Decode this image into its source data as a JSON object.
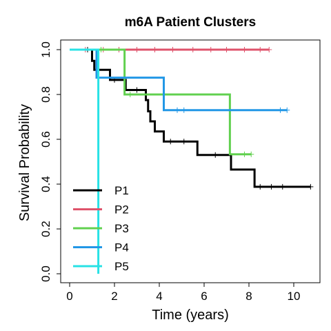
{
  "chart_data": {
    "type": "line",
    "title": "m6A Patient Clusters",
    "xlabel": "Time (years)",
    "ylabel": "Survival Probability",
    "xlim": [
      0,
      11
    ],
    "ylim": [
      0,
      1
    ],
    "x_ticks": [
      0,
      2,
      4,
      6,
      8,
      10
    ],
    "y_ticks": [
      0.0,
      0.2,
      0.4,
      0.6,
      0.8,
      1.0
    ],
    "x_tick_labels": [
      "0",
      "2",
      "4",
      "6",
      "8",
      "10"
    ],
    "y_tick_labels": [
      "0.0",
      "0.2",
      "0.4",
      "0.6",
      "0.8",
      "1.0"
    ],
    "grid": false,
    "legend_position": "bottom-left",
    "series": [
      {
        "name": "P1",
        "color": "#000000",
        "x": [
          0,
          0.95,
          1.0,
          1.1,
          1.8,
          2.5,
          3.4,
          3.5,
          3.6,
          3.8,
          4.2,
          5.7,
          7.2,
          8.25,
          10.75
        ],
        "y": [
          1.0,
          1.0,
          0.95,
          0.91,
          0.865,
          0.82,
          0.775,
          0.725,
          0.68,
          0.635,
          0.59,
          0.53,
          0.465,
          0.388,
          0.388
        ],
        "censor_x": [
          0.8,
          2.0,
          3.0,
          4.5,
          5.1,
          6.5,
          8.5,
          9.0,
          9.5,
          10.75
        ],
        "censor_y": [
          1.0,
          0.865,
          0.82,
          0.59,
          0.59,
          0.53,
          0.388,
          0.388,
          0.388,
          0.388
        ]
      },
      {
        "name": "P2",
        "color": "#DF536B",
        "x": [
          0,
          8.9
        ],
        "y": [
          1.0,
          1.0
        ],
        "censor_x": [
          0.7,
          1.5,
          2.2,
          3.0,
          3.8,
          4.6,
          5.5,
          6.3,
          7.0,
          7.8,
          8.5,
          8.9
        ],
        "censor_y": [
          1.0,
          1.0,
          1.0,
          1.0,
          1.0,
          1.0,
          1.0,
          1.0,
          1.0,
          1.0,
          1.0,
          1.0
        ]
      },
      {
        "name": "P3",
        "color": "#61D04F",
        "x": [
          0,
          2.45,
          7.15,
          8.1
        ],
        "y": [
          1.0,
          0.8,
          0.533,
          0.533
        ],
        "censor_x": [
          1.4,
          2.7,
          7.8,
          8.1
        ],
        "censor_y": [
          1.0,
          0.8,
          0.533,
          0.533
        ]
      },
      {
        "name": "P4",
        "color": "#2297E6",
        "x": [
          0,
          1.2,
          4.2,
          9.7
        ],
        "y": [
          1.0,
          0.875,
          0.73,
          0.73
        ],
        "censor_x": [
          4.8,
          5.1,
          9.4,
          9.7
        ],
        "censor_y": [
          0.73,
          0.73,
          0.73,
          0.73
        ]
      },
      {
        "name": "P5",
        "color": "#28E2E5",
        "x": [
          0,
          1.28,
          1.28
        ],
        "y": [
          1.0,
          1.0,
          0.0
        ],
        "censor_x": [],
        "censor_y": []
      }
    ]
  }
}
